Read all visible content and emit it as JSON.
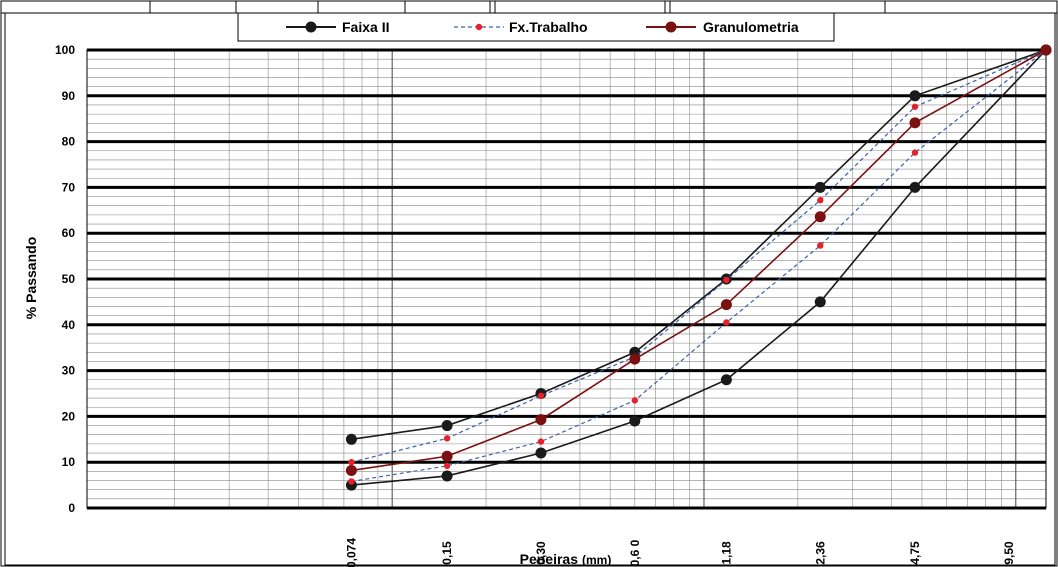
{
  "chart_data": {
    "type": "line",
    "xlabel_main": "Peneiras",
    "xlabel_unit": "(mm)",
    "ylabel": "% Passando",
    "ylim": [
      0,
      100
    ],
    "y_ticks": [
      "0",
      "10",
      "20",
      "30",
      "40",
      "50",
      "60",
      "70",
      "80",
      "90",
      "100"
    ],
    "x_scale": "log",
    "xlim": [
      0.0105,
      12.5
    ],
    "grid": true,
    "legend_position": "top",
    "sieve_labels": [
      {
        "label": "0,074",
        "x": 0.074
      },
      {
        "label": "0,15",
        "x": 0.15
      },
      {
        "label": "0,30",
        "x": 0.3
      },
      {
        "label": "0,6 0",
        "x": 0.6
      },
      {
        "label": "1,18",
        "x": 1.18
      },
      {
        "label": "2,36",
        "x": 2.36
      },
      {
        "label": "4,75",
        "x": 4.75
      },
      {
        "label": "9,50",
        "x": 9.5
      }
    ],
    "series": [
      {
        "name": "Faixa II",
        "color": "#1a1a1a",
        "marker": "large",
        "dashed": false,
        "curves": [
          {
            "x": [
              0.074,
              0.15,
              0.3,
              0.6,
              1.18,
              2.36,
              4.75,
              12.5
            ],
            "y": [
              5,
              7,
              12,
              19,
              28,
              45,
              70,
              100
            ]
          },
          {
            "x": [
              0.074,
              0.15,
              0.3,
              0.6,
              1.18,
              2.36,
              4.75,
              12.5
            ],
            "y": [
              15,
              18,
              25,
              34,
              50,
              70,
              90,
              100
            ]
          }
        ]
      },
      {
        "name": "Fx.Trabalho",
        "color": "#3d5fb0",
        "marker_color": "#e8202a",
        "marker": "small",
        "dashed": true,
        "curves": [
          {
            "x": [
              0.074,
              0.15,
              0.3,
              0.6,
              1.18,
              2.36,
              4.75,
              12.5
            ],
            "y": [
              5.8,
              9.2,
              14.5,
              23.5,
              40.5,
              57.3,
              77.6,
              100
            ]
          },
          {
            "x": [
              0.074,
              0.15,
              0.3,
              0.6,
              1.18,
              2.36,
              4.75,
              12.5
            ],
            "y": [
              10,
              15.2,
              24.5,
              33,
              49.8,
              67.2,
              87.6,
              100
            ]
          }
        ]
      },
      {
        "name": "Granulometria",
        "color": "#7b1010",
        "marker": "large",
        "dashed": false,
        "curves": [
          {
            "x": [
              0.074,
              0.15,
              0.3,
              0.6,
              1.18,
              2.36,
              4.75,
              12.5
            ],
            "y": [
              8.2,
              11.3,
              19.3,
              32.5,
              44.4,
              63.6,
              84.1,
              100
            ]
          }
        ]
      }
    ]
  }
}
